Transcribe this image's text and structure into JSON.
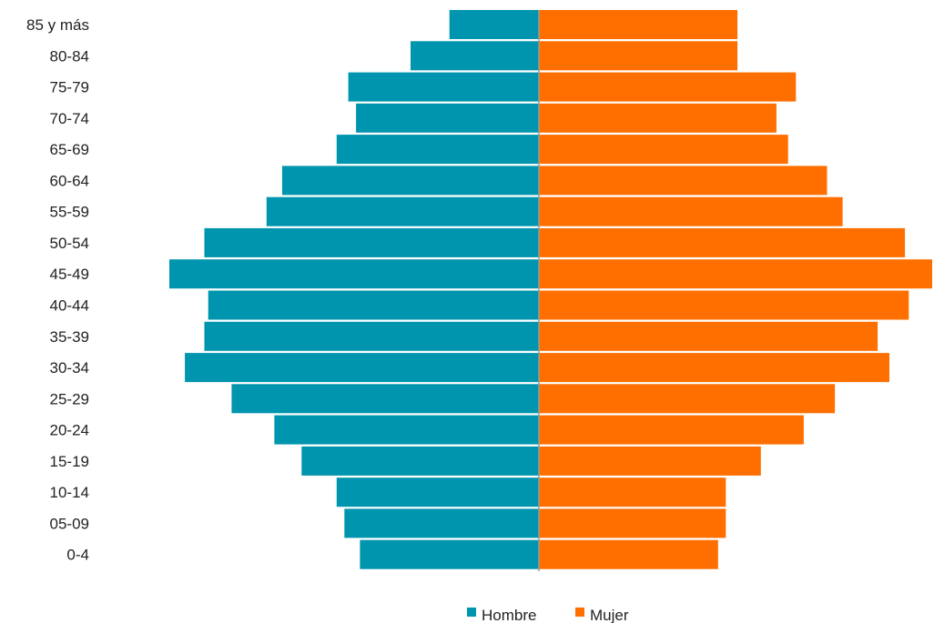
{
  "chart_data": {
    "type": "bar",
    "orientation": "horizontal",
    "layout": "population-pyramid",
    "title": "",
    "xlabel": "",
    "ylabel": "",
    "categories": [
      "0-4",
      "05-09",
      "10-14",
      "15-19",
      "20-24",
      "25-29",
      "30-34",
      "35-39",
      "40-44",
      "45-49",
      "50-54",
      "55-59",
      "60-64",
      "65-69",
      "70-74",
      "75-79",
      "80-84",
      "85 y más"
    ],
    "series": [
      {
        "name": "Hombre",
        "color": "#0095AE",
        "side": "left",
        "values": [
          4.6,
          5.0,
          5.2,
          6.1,
          6.8,
          7.9,
          9.1,
          8.6,
          8.5,
          9.5,
          8.6,
          7.0,
          6.6,
          5.2,
          4.7,
          4.9,
          3.3,
          2.3
        ]
      },
      {
        "name": "Mujer",
        "color": "#FF6F00",
        "side": "right",
        "values": [
          4.6,
          4.8,
          4.8,
          5.7,
          6.8,
          7.6,
          9.0,
          8.7,
          9.5,
          10.1,
          9.4,
          7.8,
          7.4,
          6.4,
          6.1,
          6.6,
          5.1,
          5.1
        ]
      }
    ],
    "xlim": [
      0,
      10.1
    ],
    "axis_ticks_shown": false,
    "grid": false,
    "legend_position": "bottom-center"
  }
}
